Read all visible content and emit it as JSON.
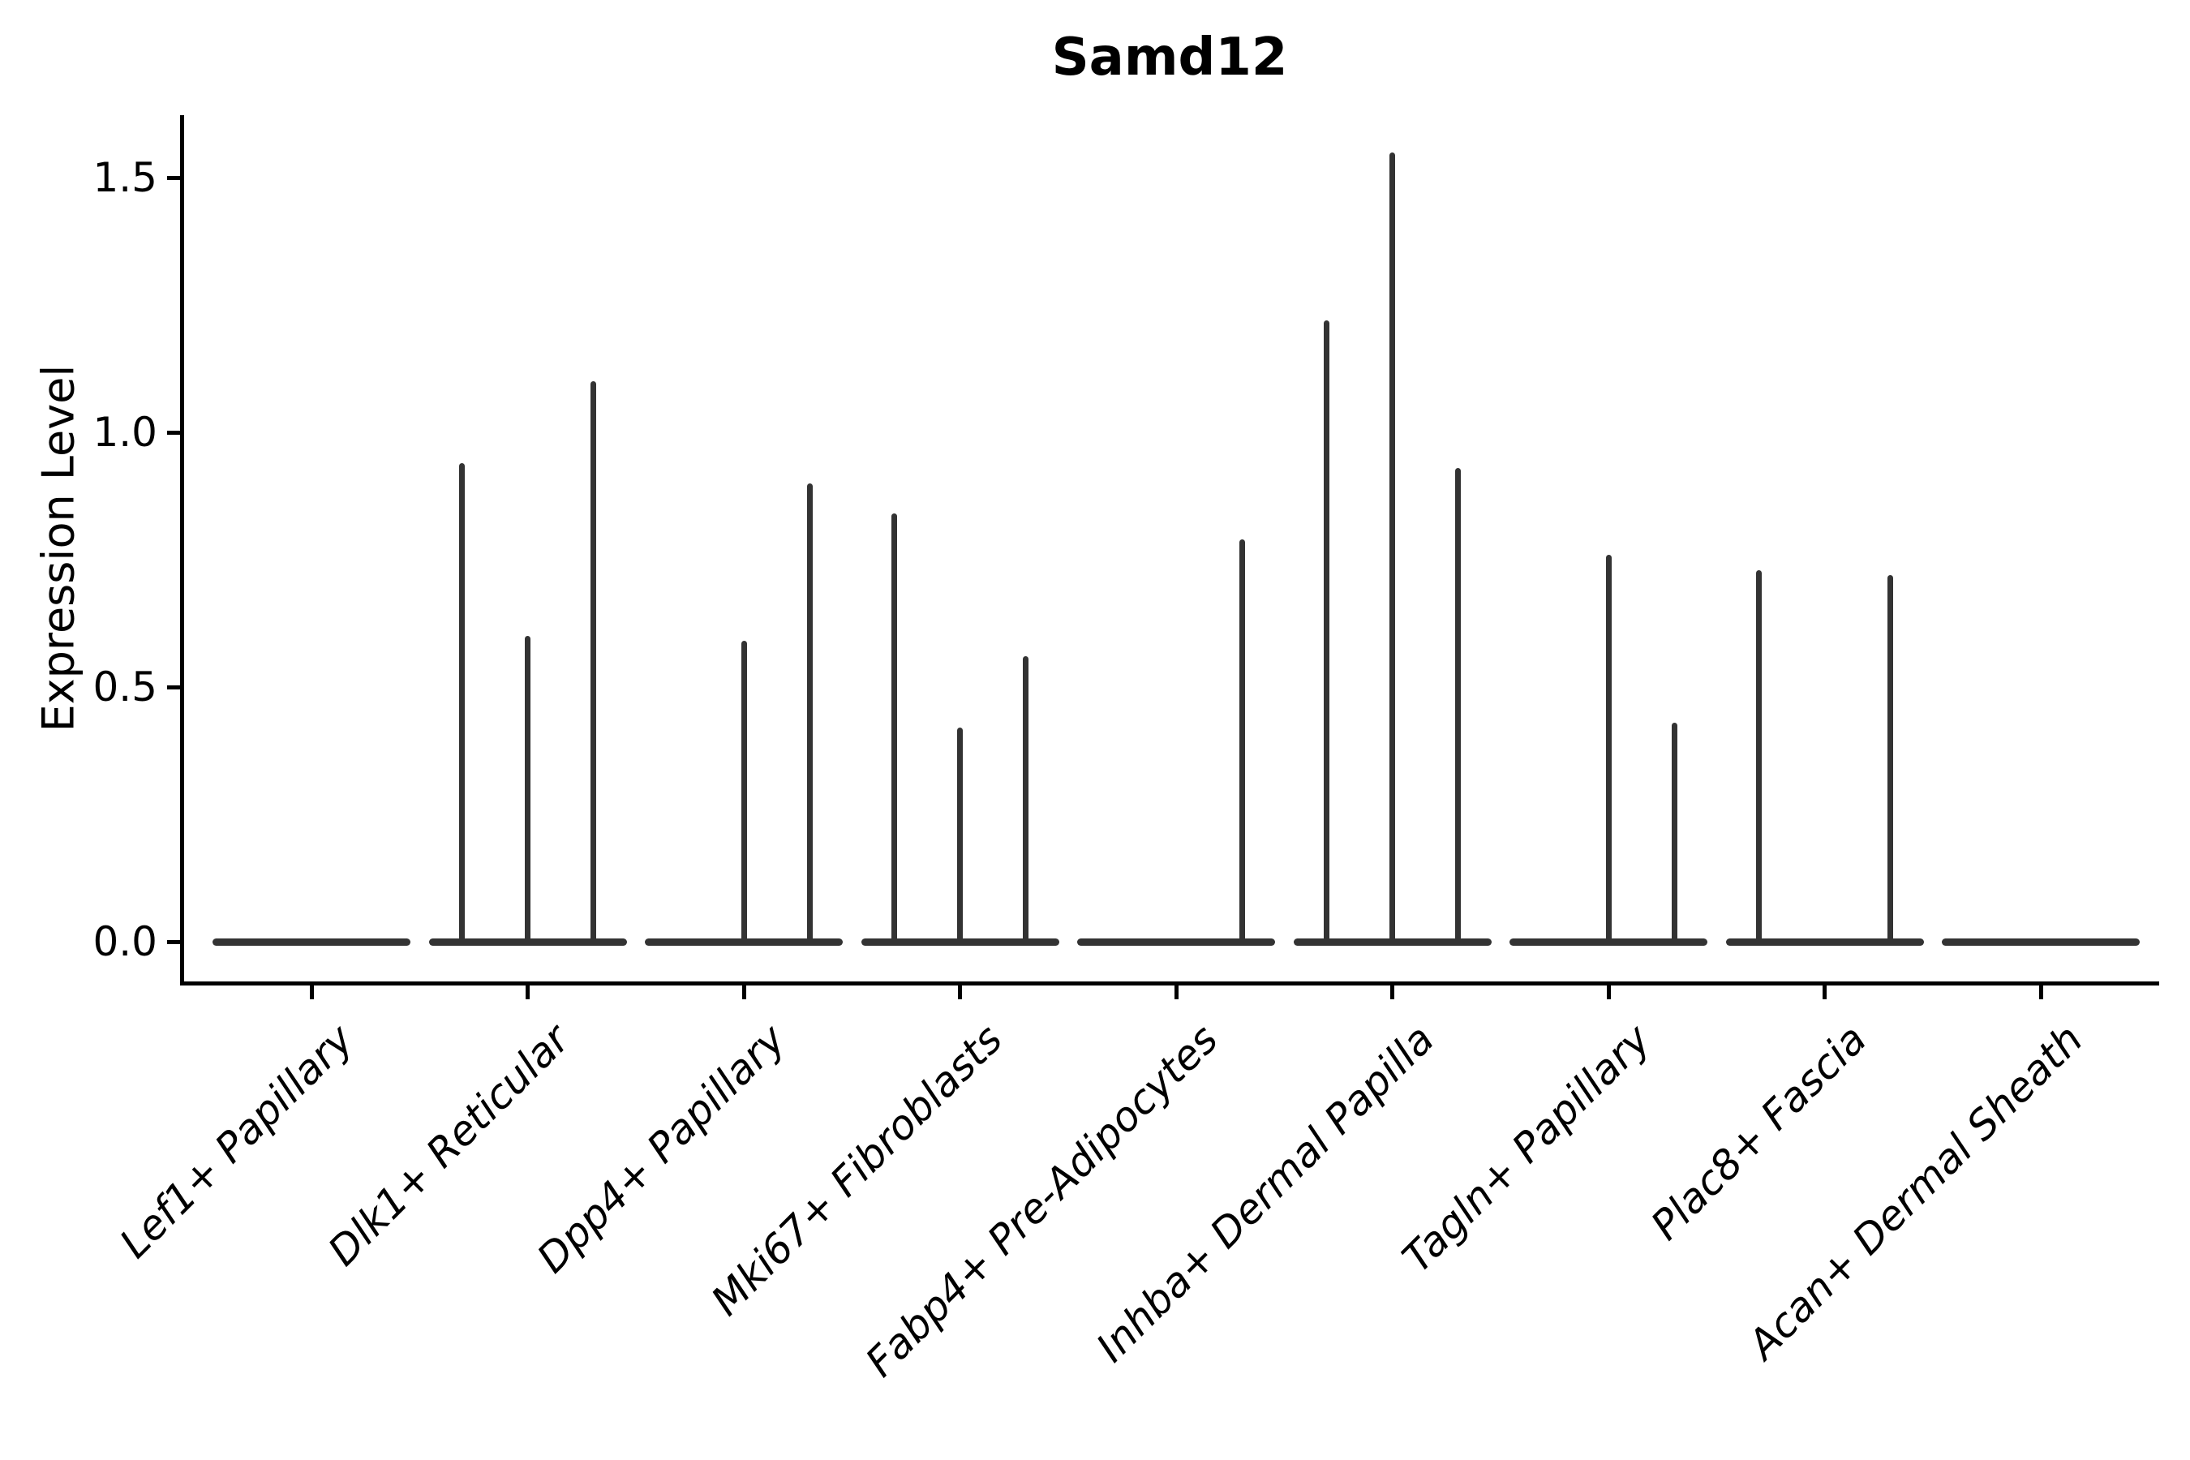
{
  "chart_data": {
    "type": "violin",
    "title": "Samd12",
    "ylabel": "Expression Level",
    "xlabel": "",
    "yticks": [
      "0.0",
      "0.5",
      "1.0",
      "1.5"
    ],
    "ylim": [
      -0.08,
      1.62
    ],
    "grid": false,
    "legend": "none",
    "violin_color": "#333333",
    "axis_color": "#000000",
    "background_color": "#ffffff",
    "violins_per_category": 3,
    "sub_violin_positions": [
      "left",
      "center",
      "right"
    ],
    "baseline_value": 0.0,
    "description": "Each category shows three collapsed violins flat at 0 expression; nonzero entries are the max expression reached by the thin density spike at each sub-violin position (0 = flat, no spike).",
    "categories": [
      "Lef1+ Papillary",
      "Dlk1+ Reticular",
      "Dpp4+ Papillary",
      "Mki67+ Fibroblasts",
      "Fabp4+ Pre-Adipocytes",
      "Inhba+ Dermal Papilla",
      "Tagln+ Papillary",
      "Plac8+ Fascia",
      "Acan+ Dermal Sheath"
    ],
    "series": [
      {
        "category": "Lef1+ Papillary",
        "max_expression": [
          0,
          0,
          0
        ]
      },
      {
        "category": "Dlk1+ Reticular",
        "max_expression": [
          0.94,
          0.6,
          1.1
        ]
      },
      {
        "category": "Dpp4+ Papillary",
        "max_expression": [
          0,
          0.59,
          0.9
        ]
      },
      {
        "category": "Mki67+ Fibroblasts",
        "max_expression": [
          0.84,
          0.42,
          0.56
        ]
      },
      {
        "category": "Fabp4+ Pre-Adipocytes",
        "max_expression": [
          0,
          0,
          0.79
        ]
      },
      {
        "category": "Inhba+ Dermal Papilla",
        "max_expression": [
          1.22,
          1.55,
          0.93
        ]
      },
      {
        "category": "Tagln+ Papillary",
        "max_expression": [
          0,
          0.76,
          0.43
        ]
      },
      {
        "category": "Plac8+ Fascia",
        "max_expression": [
          0.73,
          0,
          0.72
        ]
      },
      {
        "category": "Acan+ Dermal Sheath",
        "max_expression": [
          0,
          0,
          0
        ]
      }
    ]
  }
}
